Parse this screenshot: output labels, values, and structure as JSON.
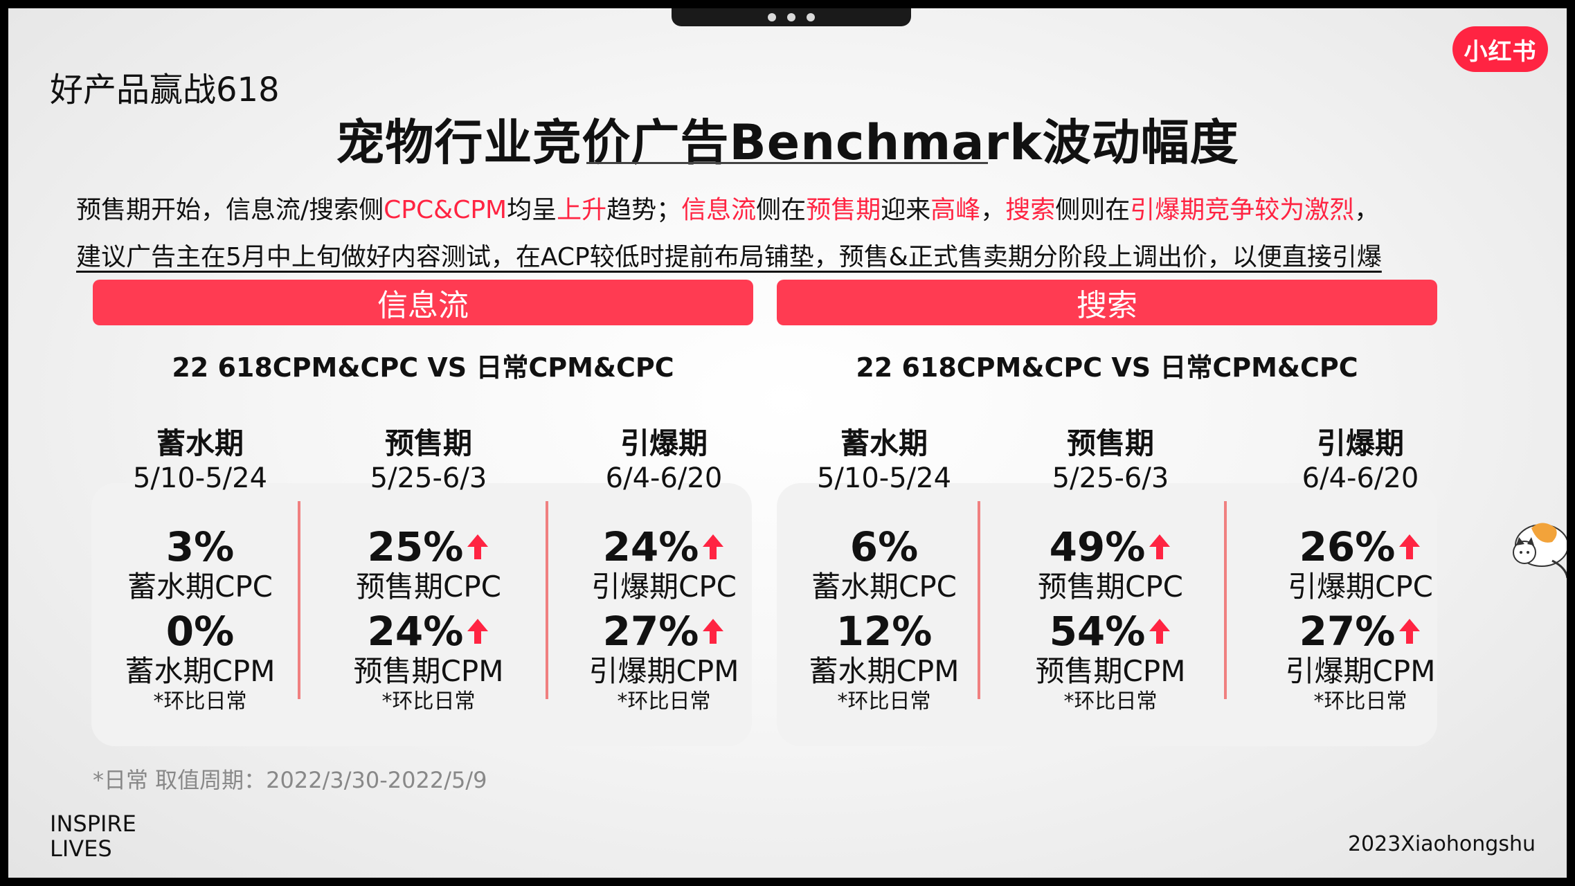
{
  "brand_top_left": "好产品赢战618",
  "logo_text": "小红书",
  "title": "宠物行业竞价广告Benchmark波动幅度",
  "description": {
    "line1": [
      {
        "text": "预售期开始，信息流/搜索侧",
        "red": false
      },
      {
        "text": "CPC&CPM",
        "red": true
      },
      {
        "text": "均呈",
        "red": false
      },
      {
        "text": "上升",
        "red": true
      },
      {
        "text": "趋势；",
        "red": false
      },
      {
        "text": "信息流",
        "red": true
      },
      {
        "text": "侧在",
        "red": false
      },
      {
        "text": "预售期",
        "red": true
      },
      {
        "text": "迎来",
        "red": false
      },
      {
        "text": "高峰",
        "red": true
      },
      {
        "text": "，",
        "red": false
      },
      {
        "text": "搜索",
        "red": true
      },
      {
        "text": "侧则在",
        "red": false
      },
      {
        "text": "引爆期竞争较为激烈",
        "red": true
      },
      {
        "text": "，",
        "red": false
      }
    ],
    "line2": "建议广告主在5月中上旬做好内容测试，在ACP较低时提前布局铺垫，预售&正式售卖期分阶段上调出价，以便直接引爆"
  },
  "sections": [
    {
      "header": "信息流",
      "subtitle": "22 618CPM&CPC VS 日常CPM&CPC",
      "phases": [
        {
          "name": "蓄水期",
          "date": "5/10-5/24",
          "cpc_value": "3%",
          "cpc_up": false,
          "cpc_label": "蓄水期CPC",
          "cpm_value": "0%",
          "cpm_up": false,
          "cpm_label": "蓄水期CPM",
          "note": "*环比日常"
        },
        {
          "name": "预售期",
          "date": "5/25-6/3",
          "cpc_value": "25%",
          "cpc_up": true,
          "cpc_label": "预售期CPC",
          "cpm_value": "24%",
          "cpm_up": true,
          "cpm_label": "预售期CPM",
          "note": "*环比日常"
        },
        {
          "name": "引爆期",
          "date": "6/4-6/20",
          "cpc_value": "24%",
          "cpc_up": true,
          "cpc_label": "引爆期CPC",
          "cpm_value": "27%",
          "cpm_up": true,
          "cpm_label": "引爆期CPM",
          "note": "*环比日常"
        }
      ]
    },
    {
      "header": "搜索",
      "subtitle": "22 618CPM&CPC VS 日常CPM&CPC",
      "phases": [
        {
          "name": "蓄水期",
          "date": "5/10-5/24",
          "cpc_value": "6%",
          "cpc_up": false,
          "cpc_label": "蓄水期CPC",
          "cpm_value": "12%",
          "cpm_up": false,
          "cpm_label": "蓄水期CPM",
          "note": "*环比日常"
        },
        {
          "name": "预售期",
          "date": "5/25-6/3",
          "cpc_value": "49%",
          "cpc_up": true,
          "cpc_label": "预售期CPC",
          "cpm_value": "54%",
          "cpm_up": true,
          "cpm_label": "预售期CPM",
          "note": "*环比日常"
        },
        {
          "name": "引爆期",
          "date": "6/4-6/20",
          "cpc_value": "26%",
          "cpc_up": true,
          "cpc_label": "引爆期CPC",
          "cpm_value": "27%",
          "cpm_up": true,
          "cpm_label": "引爆期CPM",
          "note": "*环比日常"
        }
      ]
    }
  ],
  "footnote": "*日常 取值周期：2022/3/30-2022/5/9",
  "inspire_line1": "INSPIRE",
  "inspire_line2": "LIVES",
  "copyright": "2023Xiaohongshu",
  "colors": {
    "accent": "#ff2442",
    "band": "#ff3b52",
    "divider": "#f08080"
  },
  "icons": {
    "up_arrow": "arrow-up-icon",
    "mascot": "cat-mascot-icon"
  }
}
